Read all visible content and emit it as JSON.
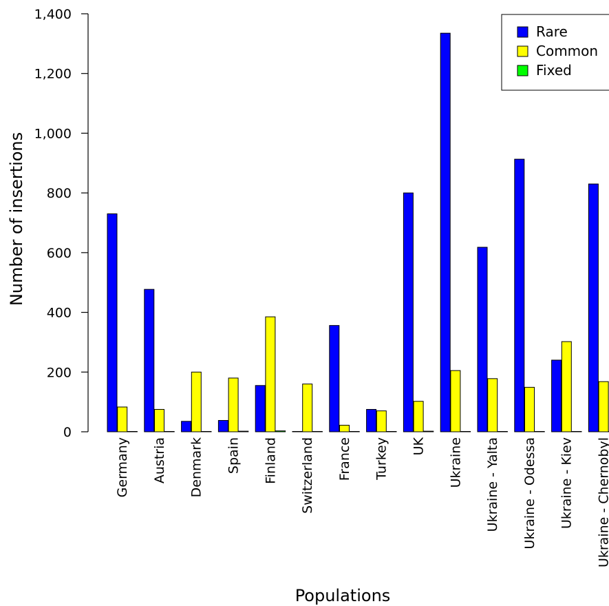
{
  "chart_data": {
    "type": "bar",
    "title": "",
    "xlabel": "Populations",
    "ylabel": "Number of insertions",
    "ylim": [
      0,
      1400
    ],
    "yticks": [
      0,
      200,
      400,
      600,
      800,
      1000,
      1200,
      1400
    ],
    "ytick_labels": [
      "0",
      "200",
      "400",
      "600",
      "800",
      "1,000",
      "1,200",
      "1,400"
    ],
    "grid": false,
    "legend_position": "top-right",
    "categories": [
      "Germany",
      "Austria",
      "Denmark",
      "Spain",
      "Finland",
      "Switzerland",
      "France",
      "Turkey",
      "UK",
      "Ukraine",
      "Ukraine - Yalta",
      "Ukraine - Odessa",
      "Ukraine - Kiev",
      "Ukraine - Chernobyl"
    ],
    "series": [
      {
        "name": "Rare",
        "color": "#0000ff",
        "values": [
          730,
          477,
          35,
          38,
          155,
          1,
          356,
          75,
          800,
          1335,
          618,
          913,
          240,
          830
        ]
      },
      {
        "name": "Common",
        "color": "#ffff00",
        "values": [
          83,
          75,
          200,
          180,
          385,
          160,
          22,
          70,
          102,
          205,
          178,
          149,
          302,
          168
        ]
      },
      {
        "name": "Fixed",
        "color": "#00ff00",
        "values": [
          0,
          0,
          1,
          2,
          3,
          0,
          0,
          0,
          2,
          0,
          1,
          1,
          1,
          0
        ]
      }
    ]
  }
}
